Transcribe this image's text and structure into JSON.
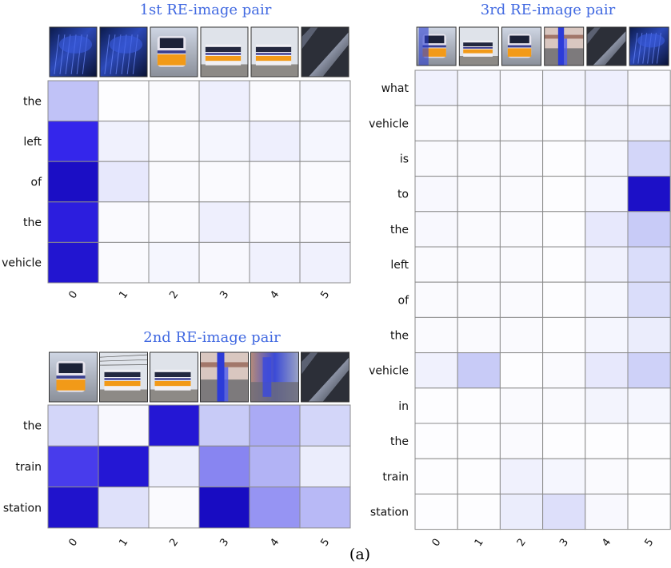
{
  "caption": "(a)",
  "colors": {
    "title": "#4169e1",
    "max": "#1a0dc4",
    "min": "#ffffff",
    "grid": "#8c8c8c"
  },
  "chart_data": [
    {
      "type": "heatmap",
      "title": "1st RE-image pair",
      "x_tick_labels": [
        "0",
        "1",
        "2",
        "3",
        "4",
        "5"
      ],
      "y_tick_labels": [
        "the",
        "left",
        "of",
        "the",
        "vehicle"
      ],
      "values": [
        [
          0.25,
          0.01,
          0.02,
          0.07,
          0.02,
          0.04
        ],
        [
          0.75,
          0.06,
          0.02,
          0.04,
          0.07,
          0.04
        ],
        [
          0.96,
          0.1,
          0.02,
          0.02,
          0.02,
          0.02
        ],
        [
          0.82,
          0.02,
          0.02,
          0.07,
          0.03,
          0.03
        ],
        [
          0.9,
          0.02,
          0.04,
          0.03,
          0.06,
          0.06
        ]
      ],
      "thumbnails": [
        "blue-car-closeup",
        "blue-car-side",
        "orange-train-front",
        "train-at-platform",
        "train-at-station",
        "rail-track-close"
      ]
    },
    {
      "type": "heatmap",
      "title": "2nd RE-image pair",
      "x_tick_labels": [
        "0",
        "1",
        "2",
        "3",
        "4",
        "5"
      ],
      "y_tick_labels": [
        "the",
        "train",
        "station"
      ],
      "values": [
        [
          0.18,
          0.03,
          0.88,
          0.22,
          0.33,
          0.18
        ],
        [
          0.68,
          0.88,
          0.08,
          0.45,
          0.3,
          0.08
        ],
        [
          0.92,
          0.13,
          0.02,
          0.98,
          0.4,
          0.28
        ]
      ],
      "thumbnails": [
        "orange-train-front",
        "train-under-wires",
        "train-at-platform",
        "blurred-blue-post",
        "blurred-platform",
        "rail-track-close"
      ]
    },
    {
      "type": "heatmap",
      "title": "3rd RE-image pair",
      "x_tick_labels": [
        "0",
        "1",
        "2",
        "3",
        "4",
        "5"
      ],
      "y_tick_labels": [
        "what",
        "vehicle",
        "is",
        "to",
        "the",
        "left",
        "of",
        "the",
        "vehicle",
        "in",
        "the",
        "train",
        "station"
      ],
      "values": [
        [
          0.06,
          0.04,
          0.03,
          0.05,
          0.07,
          0.03
        ],
        [
          0.02,
          0.02,
          0.02,
          0.01,
          0.05,
          0.06
        ],
        [
          0.02,
          0.02,
          0.02,
          0.01,
          0.04,
          0.18
        ],
        [
          0.03,
          0.02,
          0.02,
          0.01,
          0.04,
          0.95
        ],
        [
          0.03,
          0.02,
          0.02,
          0.01,
          0.1,
          0.22
        ],
        [
          0.02,
          0.02,
          0.02,
          0.01,
          0.06,
          0.15
        ],
        [
          0.02,
          0.02,
          0.02,
          0.01,
          0.04,
          0.15
        ],
        [
          0.02,
          0.02,
          0.02,
          0.01,
          0.04,
          0.08
        ],
        [
          0.06,
          0.22,
          0.01,
          0.02,
          0.1,
          0.2
        ],
        [
          0.01,
          0.01,
          0.02,
          0.02,
          0.05,
          0.04
        ],
        [
          0.01,
          0.01,
          0.02,
          0.01,
          0.01,
          0.01
        ],
        [
          0.01,
          0.01,
          0.06,
          0.04,
          0.02,
          0.01
        ],
        [
          0.01,
          0.01,
          0.08,
          0.14,
          0.03,
          0.01
        ]
      ],
      "thumbnails": [
        "train-crop-blue",
        "train-at-platform",
        "orange-train-front",
        "blue-post-platform",
        "rail-track-close",
        "blue-car-closeup"
      ]
    }
  ]
}
